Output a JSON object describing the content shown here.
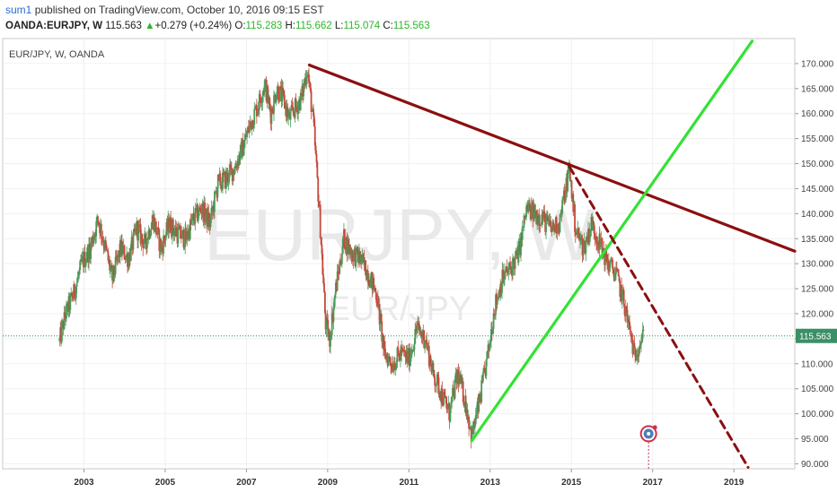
{
  "header": {
    "author": "sum1",
    "published_text": "published on TradingView.com, October 10, 2016 09:15 EST",
    "symbol": "OANDA:EURJPY, W",
    "last": "115.563",
    "change_arrow": "▲",
    "change": "+0.279 (+0.24%)",
    "o_label": "O:",
    "o_value": "115.283",
    "h_label": "H:",
    "h_value": "115.662",
    "l_label": "L:",
    "l_value": "115.074",
    "c_label": "C:",
    "c_value": "115.563"
  },
  "chart_data": {
    "type": "candlestick",
    "pane_title": "EUR/JPY, W, OANDA",
    "watermark_main": "EURJPY, W",
    "watermark_sub": "EUR/JPY",
    "ylim": [
      89,
      175
    ],
    "y_ticks": [
      "90.000",
      "95.000",
      "100.000",
      "105.000",
      "110.000",
      "115.000",
      "120.000",
      "125.000",
      "130.000",
      "135.000",
      "140.000",
      "145.000",
      "150.000",
      "155.000",
      "160.000",
      "165.000",
      "170.000"
    ],
    "x_tick_labels": [
      "2003",
      "2005",
      "2007",
      "2009",
      "2011",
      "2013",
      "2015",
      "2017",
      "2019"
    ],
    "xlim": [
      2001.0,
      2020.5
    ],
    "last_price": 115.563,
    "last_price_label": "115.563",
    "price_path": [
      [
        2002.4,
        114.5
      ],
      [
        2002.55,
        120
      ],
      [
        2002.75,
        124
      ],
      [
        2002.95,
        130
      ],
      [
        2003.15,
        133
      ],
      [
        2003.35,
        139
      ],
      [
        2003.5,
        134
      ],
      [
        2003.7,
        127
      ],
      [
        2003.9,
        133
      ],
      [
        2004.1,
        131
      ],
      [
        2004.3,
        137
      ],
      [
        2004.5,
        134
      ],
      [
        2004.7,
        139
      ],
      [
        2004.9,
        133
      ],
      [
        2005.1,
        138
      ],
      [
        2005.3,
        136
      ],
      [
        2005.5,
        135
      ],
      [
        2005.7,
        139
      ],
      [
        2005.9,
        141
      ],
      [
        2006.1,
        138
      ],
      [
        2006.3,
        146
      ],
      [
        2006.5,
        147
      ],
      [
        2006.7,
        149
      ],
      [
        2006.9,
        153
      ],
      [
        2007.1,
        158
      ],
      [
        2007.3,
        162
      ],
      [
        2007.45,
        166
      ],
      [
        2007.6,
        160
      ],
      [
        2007.75,
        165
      ],
      [
        2007.9,
        163
      ],
      [
        2008.05,
        159
      ],
      [
        2008.2,
        161
      ],
      [
        2008.35,
        163
      ],
      [
        2008.5,
        169
      ],
      [
        2008.65,
        158
      ],
      [
        2008.8,
        140
      ],
      [
        2008.95,
        118
      ],
      [
        2009.05,
        115
      ],
      [
        2009.2,
        125
      ],
      [
        2009.4,
        135
      ],
      [
        2009.6,
        132
      ],
      [
        2009.8,
        131
      ],
      [
        2010.0,
        128
      ],
      [
        2010.2,
        124
      ],
      [
        2010.4,
        112
      ],
      [
        2010.6,
        110
      ],
      [
        2010.8,
        112
      ],
      [
        2011.0,
        111
      ],
      [
        2011.2,
        117
      ],
      [
        2011.4,
        115
      ],
      [
        2011.6,
        108
      ],
      [
        2011.8,
        104
      ],
      [
        2012.0,
        100
      ],
      [
        2012.2,
        108
      ],
      [
        2012.4,
        102
      ],
      [
        2012.55,
        95.5
      ],
      [
        2012.75,
        103
      ],
      [
        2012.95,
        112
      ],
      [
        2013.1,
        121
      ],
      [
        2013.3,
        127
      ],
      [
        2013.5,
        129
      ],
      [
        2013.7,
        132
      ],
      [
        2013.9,
        141
      ],
      [
        2014.1,
        140
      ],
      [
        2014.3,
        139
      ],
      [
        2014.5,
        137
      ],
      [
        2014.7,
        138
      ],
      [
        2014.95,
        149
      ],
      [
        2015.1,
        137
      ],
      [
        2015.3,
        133
      ],
      [
        2015.5,
        138
      ],
      [
        2015.7,
        134
      ],
      [
        2015.9,
        130
      ],
      [
        2016.1,
        128
      ],
      [
        2016.3,
        122
      ],
      [
        2016.45,
        116
      ],
      [
        2016.55,
        112
      ],
      [
        2016.7,
        114.5
      ],
      [
        2016.78,
        115.5
      ]
    ],
    "trendlines": [
      {
        "style": "solid",
        "color": "#8b0f0f",
        "x1": 2008.55,
        "y1": 169.7,
        "x2": 2020.5,
        "y2": 132.5
      },
      {
        "style": "solid",
        "color": "#33e233",
        "x1": 2012.55,
        "y1": 94.6,
        "x2": 2019.45,
        "y2": 174.5
      },
      {
        "style": "dashed",
        "color": "#8b0f0f",
        "x1": 2014.95,
        "y1": 149.4,
        "x2": 2019.35,
        "y2": 89.3
      }
    ],
    "marker": {
      "x": 2016.9,
      "y": 96.0,
      "vline_to": 89.0
    }
  }
}
